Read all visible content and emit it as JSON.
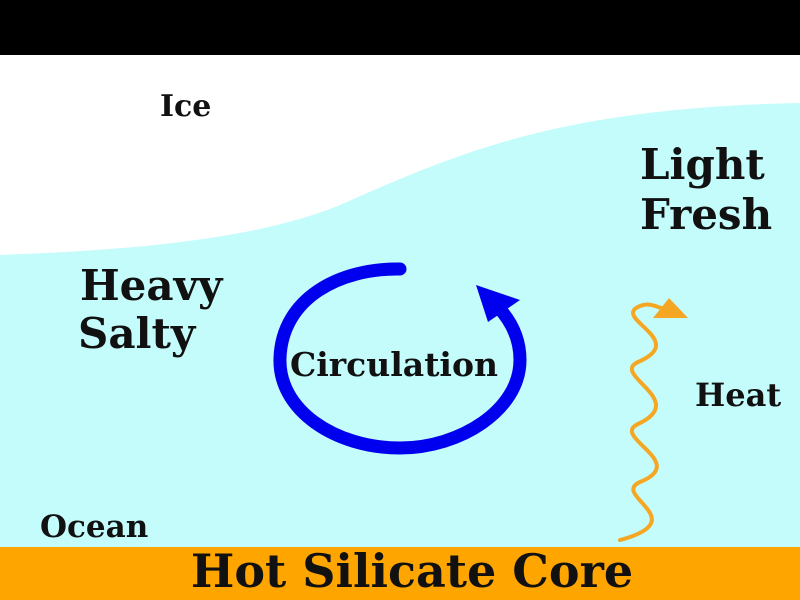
{
  "labels": {
    "ice": "Ice",
    "light": "Light",
    "fresh": "Fresh",
    "heavy": "Heavy",
    "salty": "Salty",
    "circulation": "Circulation",
    "heat": "Heat",
    "ocean": "Ocean",
    "core": "Hot Silicate Core"
  },
  "colors": {
    "top_bar": "#000000",
    "ice": "#ffffff",
    "ocean": "#c4fcfc",
    "core": "#ffa500",
    "circulation_arrow": "#0000ee",
    "heat_arrow": "#f5a623",
    "text": "#111111"
  },
  "icons": {
    "circulation": "circular-arrow-icon",
    "heat": "wavy-heat-arrow-icon"
  }
}
